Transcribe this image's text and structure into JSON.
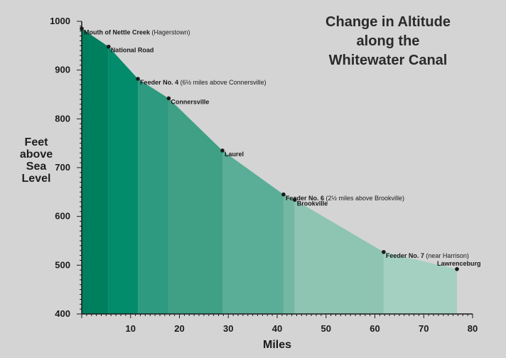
{
  "chart_data": {
    "type": "area",
    "title": [
      "Change in Altitude",
      "along the",
      "Whitewater Canal"
    ],
    "xlabel": "Miles",
    "ylabel": [
      "Feet",
      "above",
      "Sea",
      "Level"
    ],
    "xlim": [
      0,
      80
    ],
    "ylim": [
      400,
      1000
    ],
    "x_ticks": [
      "10",
      "20",
      "30",
      "40",
      "50",
      "60",
      "70",
      "80"
    ],
    "y_ticks": [
      "400",
      "500",
      "600",
      "700",
      "800",
      "900",
      "1000"
    ],
    "points": [
      {
        "x": 0,
        "y": 985,
        "name": "Mouth of Nettle Creek",
        "note": " (Hagerstown)"
      },
      {
        "x": 5.5,
        "y": 948,
        "name": "National Road",
        "note": ""
      },
      {
        "x": 11.5,
        "y": 882,
        "name": "Feeder No. 4",
        "note": " (6½ miles above Connersville)"
      },
      {
        "x": 17.8,
        "y": 842,
        "name": "Connersville",
        "note": ""
      },
      {
        "x": 28.8,
        "y": 735,
        "name": "Laurel",
        "note": ""
      },
      {
        "x": 41.3,
        "y": 645,
        "name": "Feeder No. 6",
        "note": " (2½ miles above Brookville)"
      },
      {
        "x": 43.6,
        "y": 634,
        "name": "Brookville",
        "note": ""
      },
      {
        "x": 61.8,
        "y": 527,
        "name": "Feeder No. 7",
        "note": " (near Harrison)"
      },
      {
        "x": 76.8,
        "y": 492,
        "name": "Lawrenceburg",
        "note": ""
      }
    ],
    "band_colors": [
      "#007f5f",
      "#028c6c",
      "#2e9a80",
      "#3fa085",
      "#5aad96",
      "#74b8a3",
      "#8ec4b2",
      "#a4d0c1",
      "#bcdbd1"
    ],
    "colors": {
      "background": "#d4d4d4",
      "axis": "#1a1a1a",
      "marker": "#1a1a1a"
    }
  }
}
